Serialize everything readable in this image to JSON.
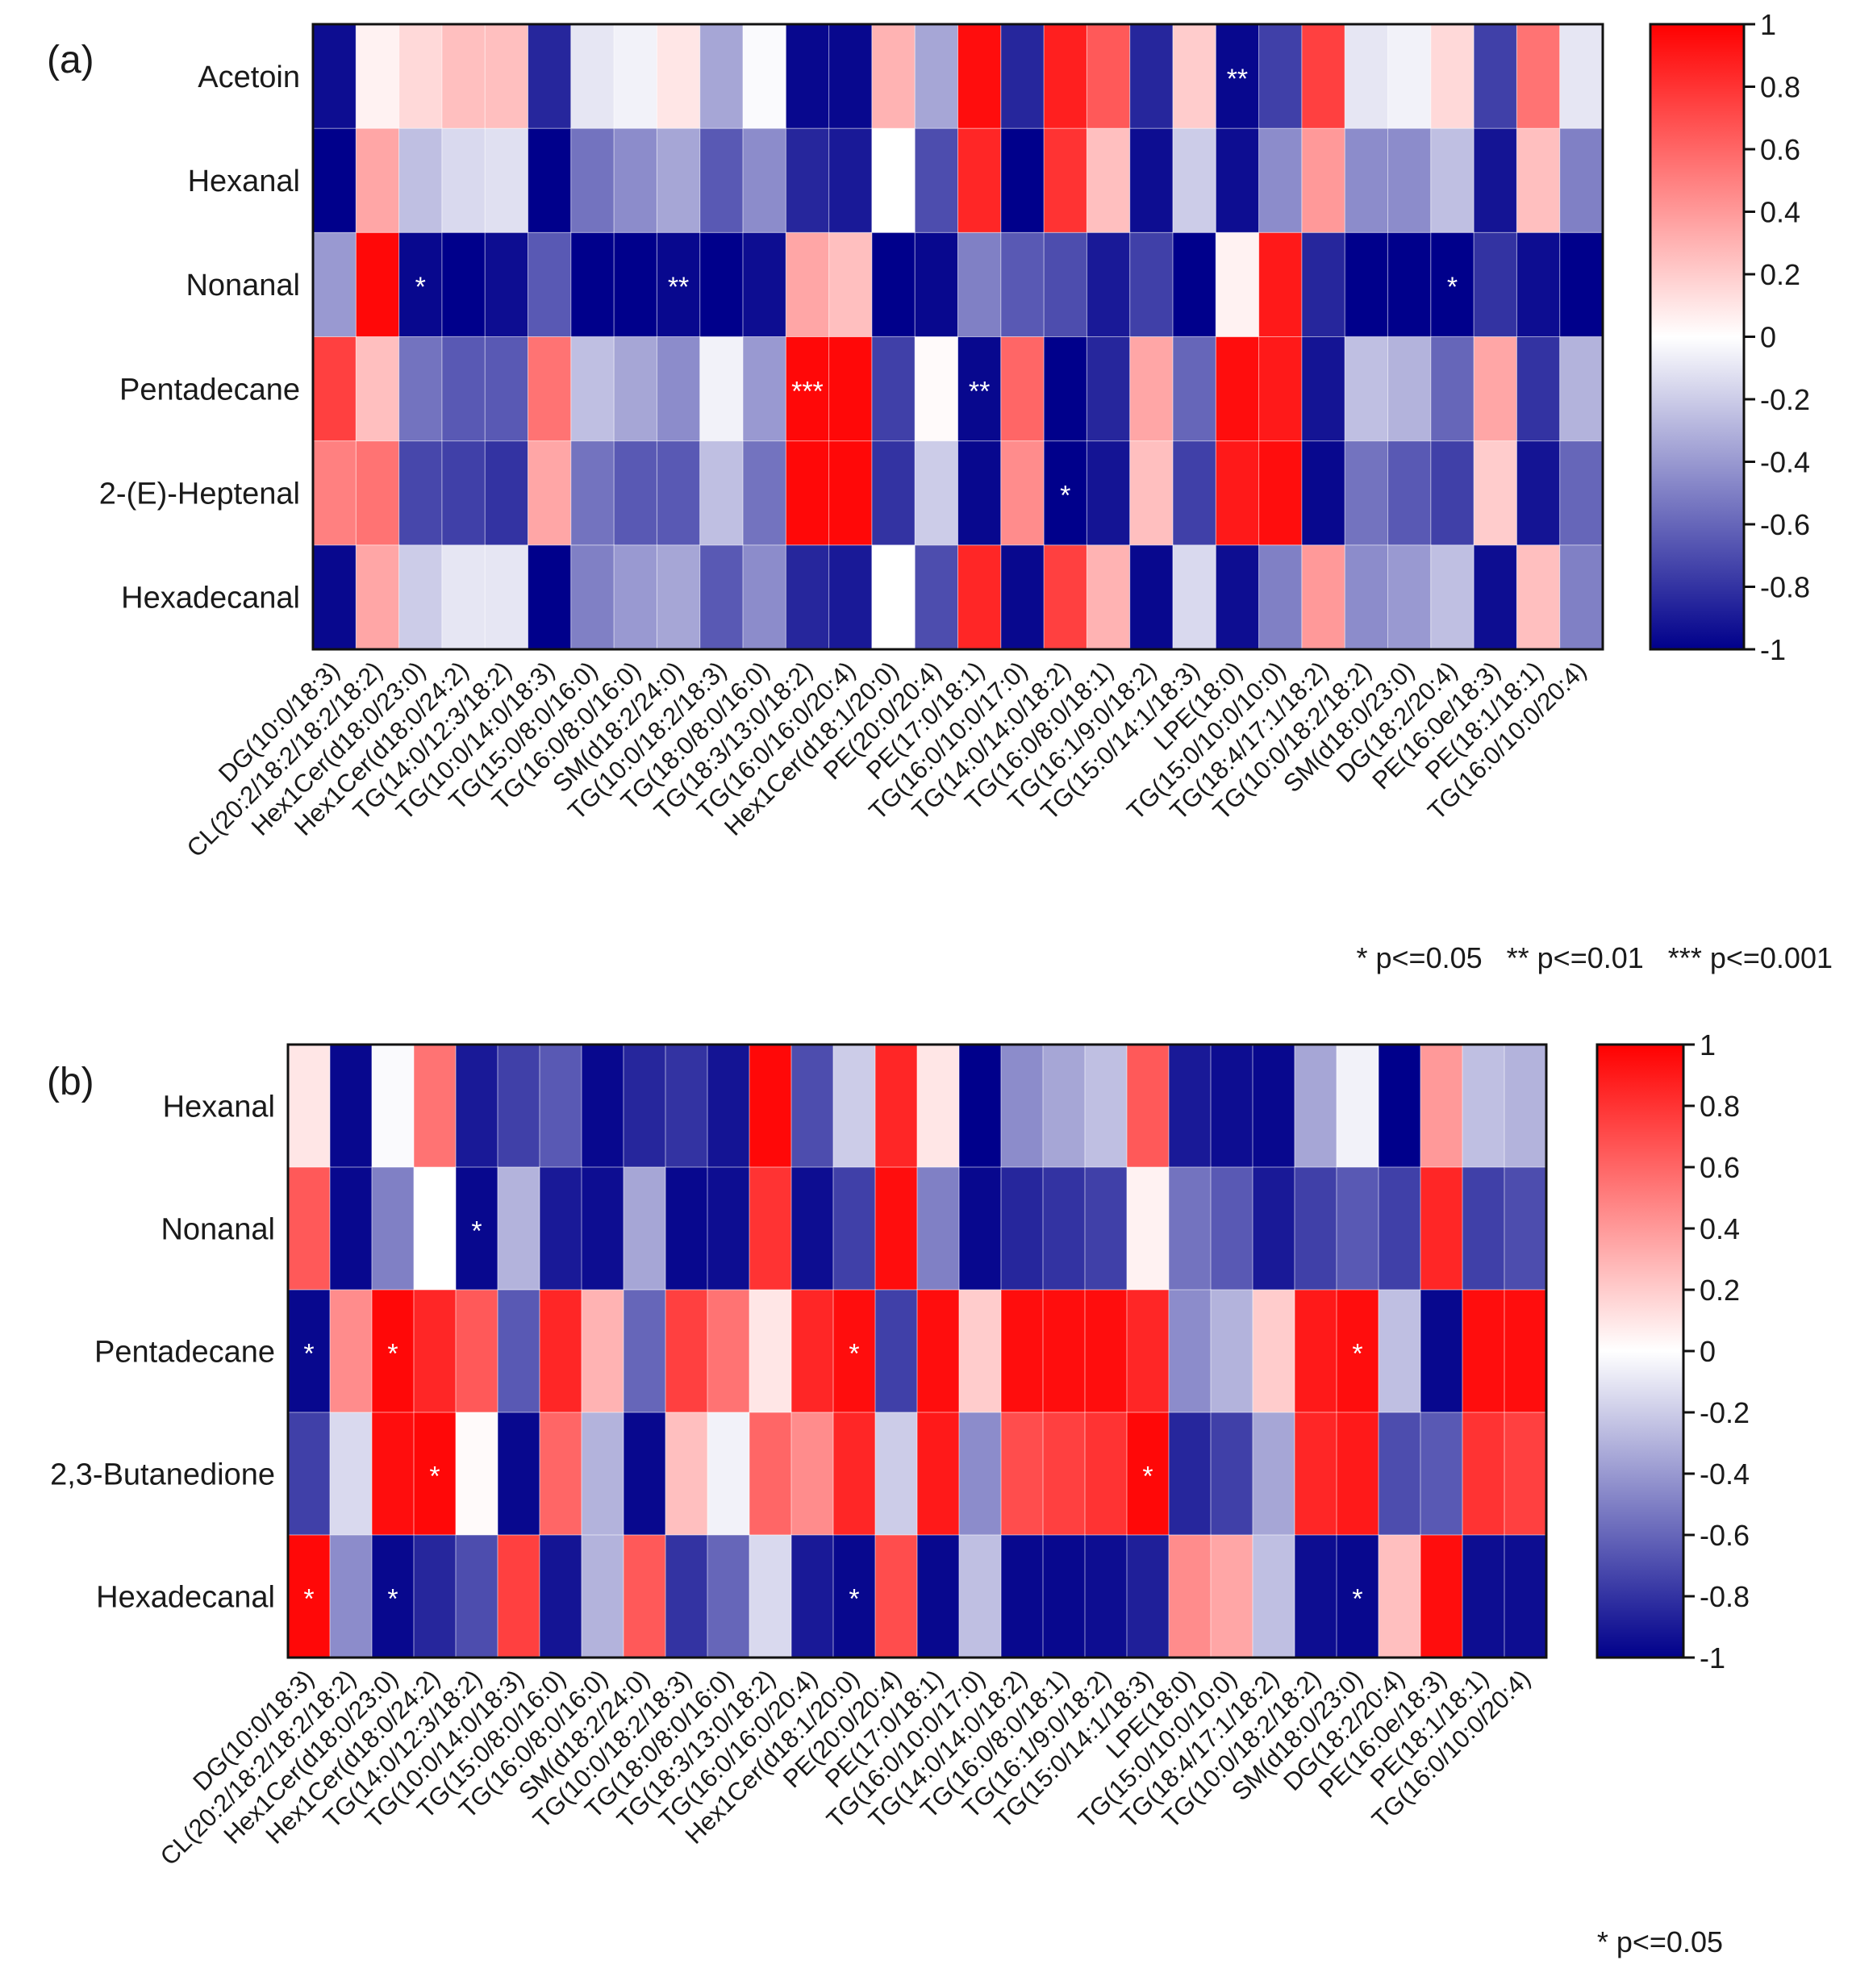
{
  "chart_data": [
    {
      "type": "heatmap",
      "panel_label": "(a)",
      "rows": [
        "Acetoin",
        "Hexanal",
        "Nonanal",
        "Pentadecane",
        "2-(E)-Heptenal",
        "Hexadecanal"
      ],
      "columns": [
        "DG(10:0/18:3)",
        "CL(20:2/18:2/18:2/18:2)",
        "Hex1Cer(d18:0/23:0)",
        "Hex1Cer(d18:0/24:2)",
        "TG(14:0/12:3/18:2)",
        "TG(10:0/14:0/18:3)",
        "TG(15:0/8:0/16:0)",
        "TG(16:0/8:0/16:0)",
        "SM(d18:2/24:0)",
        "TG(10:0/18:2/18:3)",
        "TG(18:0/8:0/16:0)",
        "TG(18:3/13:0/18:2)",
        "TG(16:0/16:0/20:4)",
        "Hex1Cer(d18:1/20:0)",
        "PE(20:0/20:4)",
        "PE(17:0/18:1)",
        "TG(16:0/10:0/17:0)",
        "TG(14:0/14:0/18:2)",
        "TG(16:0/8:0/18:1)",
        "TG(16:1/9:0/18:2)",
        "TG(15:0/14:1/18:3)",
        "LPE(18:0)",
        "TG(15:0/10:0/10:0)",
        "TG(18:4/17:1/18:2)",
        "TG(10:0/18:2/18:2)",
        "SM(d18:0/23:0)",
        "DG(18:2/20:4)",
        "PE(16:0e/18:3)",
        "PE(18:1/18:1)",
        "TG(16:0/10:0/20:4)"
      ],
      "values": [
        [
          -0.95,
          0.05,
          0.15,
          0.25,
          0.25,
          -0.85,
          -0.1,
          -0.05,
          0.1,
          -0.35,
          -0.02,
          -0.97,
          -0.97,
          0.3,
          -0.35,
          0.95,
          -0.85,
          0.88,
          0.65,
          -0.85,
          0.2,
          -0.97,
          -0.75,
          0.75,
          -0.1,
          -0.05,
          0.15,
          -0.75,
          0.55,
          -0.1
        ],
        [
          -1.0,
          0.35,
          -0.25,
          -0.15,
          -0.12,
          -1.0,
          -0.55,
          -0.45,
          -0.35,
          -0.65,
          -0.45,
          -0.85,
          -0.9,
          0.0,
          -0.7,
          0.85,
          -1.0,
          0.8,
          0.25,
          -0.95,
          -0.2,
          -0.95,
          -0.45,
          0.4,
          -0.45,
          -0.45,
          -0.25,
          -0.92,
          0.25,
          -0.5
        ],
        [
          -0.4,
          0.97,
          -0.97,
          -1.0,
          -0.95,
          -0.65,
          -1.0,
          -1.0,
          -0.97,
          -1.0,
          -0.95,
          0.35,
          0.25,
          -1.0,
          -0.97,
          -0.5,
          -0.65,
          -0.7,
          -0.9,
          -0.75,
          -1.0,
          0.05,
          0.9,
          -0.85,
          -1.0,
          -1.0,
          -1.0,
          -0.8,
          -0.95,
          -1.0
        ],
        [
          0.75,
          0.25,
          -0.55,
          -0.65,
          -0.65,
          0.55,
          -0.25,
          -0.35,
          -0.45,
          -0.05,
          -0.4,
          0.97,
          0.97,
          -0.75,
          0.02,
          -0.97,
          0.6,
          -1.0,
          -0.85,
          0.35,
          -0.6,
          0.95,
          0.9,
          -0.92,
          -0.25,
          -0.3,
          -0.6,
          0.35,
          -0.8,
          -0.3
        ],
        [
          0.5,
          0.55,
          -0.72,
          -0.75,
          -0.8,
          0.35,
          -0.55,
          -0.65,
          -0.65,
          -0.25,
          -0.55,
          0.97,
          0.97,
          -0.8,
          -0.2,
          -0.97,
          0.45,
          -1.0,
          -0.92,
          0.25,
          -0.75,
          0.9,
          0.95,
          -0.97,
          -0.55,
          -0.65,
          -0.75,
          0.2,
          -0.92,
          -0.6
        ],
        [
          -0.97,
          0.35,
          -0.2,
          -0.1,
          -0.1,
          -1.0,
          -0.5,
          -0.4,
          -0.35,
          -0.65,
          -0.45,
          -0.85,
          -0.9,
          0.0,
          -0.7,
          0.85,
          -0.97,
          0.75,
          0.3,
          -0.97,
          -0.15,
          -0.95,
          -0.5,
          0.4,
          -0.45,
          -0.4,
          -0.25,
          -0.95,
          0.25,
          -0.5
        ]
      ],
      "significance": [
        [
          "",
          "",
          "",
          "",
          "",
          "",
          "",
          "",
          "",
          "",
          "",
          "",
          "",
          "",
          "",
          "",
          "",
          "",
          "",
          "",
          "",
          "**",
          "",
          "",
          "",
          "",
          "",
          "",
          "",
          ""
        ],
        [
          "",
          "",
          "",
          "",
          "",
          "",
          "",
          "",
          "",
          "",
          "",
          "",
          "",
          "",
          "",
          "",
          "",
          "",
          "",
          "",
          "",
          "",
          "",
          "",
          "",
          "",
          "",
          "",
          "",
          ""
        ],
        [
          "",
          "",
          "*",
          "",
          "",
          "",
          "",
          "",
          "**",
          "",
          "",
          "",
          "",
          "",
          "",
          "",
          "",
          "",
          "",
          "",
          "",
          "",
          "",
          "",
          "",
          "",
          "*",
          "",
          "",
          ""
        ],
        [
          "",
          "",
          "",
          "",
          "",
          "",
          "",
          "",
          "",
          "",
          "",
          "***",
          "",
          "",
          "",
          "**",
          "",
          "",
          "",
          "",
          "",
          "",
          "",
          "",
          "",
          "",
          "",
          "",
          "",
          ""
        ],
        [
          "",
          "",
          "",
          "",
          "",
          "",
          "",
          "",
          "",
          "",
          "",
          "",
          "",
          "",
          "",
          "",
          "",
          "*",
          "",
          "",
          "",
          "",
          "",
          "",
          "",
          "",
          "",
          "",
          "",
          ""
        ],
        [
          "",
          "",
          "",
          "",
          "",
          "",
          "",
          "",
          "",
          "",
          "",
          "",
          "",
          "",
          "",
          "",
          "",
          "",
          "",
          "",
          "",
          "",
          "",
          "",
          "",
          "",
          "",
          "",
          "",
          ""
        ]
      ],
      "colorbar": {
        "min": -1,
        "max": 1,
        "ticks": [
          "1",
          "0.8",
          "0.6",
          "0.4",
          "0.2",
          "0",
          "-0.2",
          "-0.4",
          "-0.6",
          "-0.8",
          "-1"
        ]
      },
      "legend_text": "* p<=0.05   ** p<=0.01   *** p<=0.001"
    },
    {
      "type": "heatmap",
      "panel_label": "(b)",
      "rows": [
        "Hexanal",
        "Nonanal",
        "Pentadecane",
        "2,3-Butanedione",
        "Hexadecanal"
      ],
      "columns": [
        "DG(10:0/18:3)",
        "CL(20:2/18:2/18:2/18:2)",
        "Hex1Cer(d18:0/23:0)",
        "Hex1Cer(d18:0/24:2)",
        "TG(14:0/12:3/18:2)",
        "TG(10:0/14:0/18:3)",
        "TG(15:0/8:0/16:0)",
        "TG(16:0/8:0/16:0)",
        "SM(d18:2/24:0)",
        "TG(10:0/18:2/18:3)",
        "TG(18:0/8:0/16:0)",
        "TG(18:3/13:0/18:2)",
        "TG(16:0/16:0/20:4)",
        "Hex1Cer(d18:1/20:0)",
        "PE(20:0/20:4)",
        "PE(17:0/18:1)",
        "TG(16:0/10:0/17:0)",
        "TG(14:0/14:0/18:2)",
        "TG(16:0/8:0/18:1)",
        "TG(16:1/9:0/18:2)",
        "TG(15:0/14:1/18:3)",
        "LPE(18:0)",
        "TG(15:0/10:0/10:0)",
        "TG(18:4/17:1/18:2)",
        "TG(10:0/18:2/18:2)",
        "SM(d18:0/23:0)",
        "DG(18:2/20:4)",
        "PE(16:0e/18:3)",
        "PE(18:1/18:1)",
        "TG(16:0/10:0/20:4)"
      ],
      "values": [
        [
          0.1,
          -0.97,
          -0.02,
          0.55,
          -0.9,
          -0.75,
          -0.65,
          -0.97,
          -0.85,
          -0.8,
          -0.92,
          0.97,
          -0.7,
          -0.2,
          0.85,
          0.1,
          -1.0,
          -0.45,
          -0.35,
          -0.25,
          0.65,
          -0.9,
          -0.95,
          -0.97,
          -0.35,
          -0.05,
          -1.0,
          0.4,
          -0.25,
          -0.3
        ],
        [
          0.65,
          -0.97,
          -0.5,
          0.0,
          -0.97,
          -0.3,
          -0.9,
          -0.95,
          -0.35,
          -0.97,
          -0.95,
          0.8,
          -0.95,
          -0.75,
          0.95,
          -0.5,
          -0.97,
          -0.85,
          -0.8,
          -0.75,
          0.05,
          -0.55,
          -0.65,
          -0.9,
          -0.75,
          -0.65,
          -0.75,
          0.85,
          -0.75,
          -0.7
        ],
        [
          -0.97,
          0.45,
          0.97,
          0.85,
          0.65,
          -0.65,
          0.85,
          0.3,
          -0.6,
          0.75,
          0.55,
          0.1,
          0.85,
          0.95,
          -0.75,
          0.95,
          0.2,
          0.95,
          0.95,
          0.95,
          0.85,
          -0.45,
          -0.3,
          0.2,
          0.9,
          0.95,
          -0.25,
          -0.97,
          0.95,
          0.95
        ],
        [
          -0.75,
          -0.15,
          0.95,
          0.97,
          0.02,
          -0.97,
          0.6,
          -0.3,
          -0.97,
          0.25,
          -0.05,
          0.6,
          0.45,
          0.85,
          -0.2,
          0.9,
          -0.45,
          0.7,
          0.75,
          0.8,
          0.97,
          -0.85,
          -0.75,
          -0.35,
          0.85,
          0.9,
          -0.7,
          -0.65,
          0.8,
          0.75
        ],
        [
          0.97,
          -0.45,
          -0.97,
          -0.85,
          -0.7,
          0.75,
          -0.92,
          -0.3,
          0.65,
          -0.8,
          -0.6,
          -0.15,
          -0.9,
          -0.97,
          0.7,
          -0.97,
          -0.25,
          -0.97,
          -0.97,
          -0.95,
          -0.88,
          0.45,
          0.35,
          -0.25,
          -0.95,
          -0.97,
          0.25,
          0.95,
          -0.95,
          -0.95
        ]
      ],
      "significance": [
        [
          "",
          "",
          "",
          "",
          "",
          "",
          "",
          "",
          "",
          "",
          "",
          "",
          "",
          "",
          "",
          "",
          "",
          "",
          "",
          "",
          "",
          "",
          "",
          "",
          "",
          "",
          "",
          "",
          "",
          ""
        ],
        [
          "",
          "",
          "",
          "",
          "*",
          "",
          "",
          "",
          "",
          "",
          "",
          "",
          "",
          "",
          "",
          "",
          "",
          "",
          "",
          "",
          "",
          "",
          "",
          "",
          "",
          "",
          "",
          "",
          "",
          ""
        ],
        [
          "*",
          "",
          "*",
          "",
          "",
          "",
          "",
          "",
          "",
          "",
          "",
          "",
          "",
          "*",
          "",
          "",
          "",
          "",
          "",
          "",
          "",
          "",
          "",
          "",
          "",
          "*",
          "",
          "",
          "",
          ""
        ],
        [
          "",
          "",
          "",
          "*",
          "",
          "",
          "",
          "",
          "",
          "",
          "",
          "",
          "",
          "",
          "",
          "",
          "",
          "",
          "",
          "",
          "*",
          "",
          "",
          "",
          "",
          "",
          "",
          "",
          "",
          ""
        ],
        [
          "*",
          "",
          "*",
          "",
          "",
          "",
          "",
          "",
          "",
          "",
          "",
          "",
          "",
          "*",
          "",
          "",
          "",
          "",
          "",
          "",
          "",
          "",
          "",
          "",
          "",
          "*",
          "",
          "",
          "",
          ""
        ]
      ],
      "colorbar": {
        "min": -1,
        "max": 1,
        "ticks": [
          "1",
          "0.8",
          "0.6",
          "0.4",
          "0.2",
          "0",
          "-0.2",
          "-0.4",
          "-0.6",
          "-0.8",
          "-1"
        ]
      },
      "legend_text": "* p<=0.05"
    }
  ]
}
